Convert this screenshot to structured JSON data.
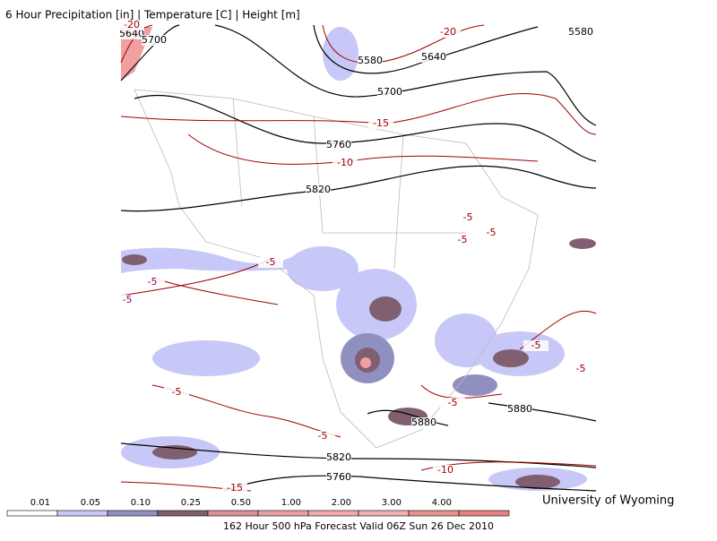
{
  "header": {
    "title": "6 Hour Precipitation [in] | Temperature [C] | Height [m]"
  },
  "contour_labels": [
    "5640",
    "5700",
    "-20",
    "5580",
    "5640",
    "-20",
    "5580",
    "5700",
    "-15",
    "5760",
    "-10",
    "5820",
    "-5",
    "-5",
    "-5",
    "-5",
    "-5",
    "-5",
    "-5",
    "-5",
    "-5",
    "-5",
    "5880",
    "5880",
    "-5",
    "5820",
    "-10",
    "5760",
    "-15"
  ],
  "legend": {
    "labels": [
      "0.01",
      "0.05",
      "0.10",
      "0.25",
      "0.50",
      "1.00",
      "2.00",
      "3.00",
      "4.00"
    ]
  },
  "credit": "University of Wyoming",
  "footer": "162 Hour 500 hPa Forecast Valid 06Z Sun 26 Dec 2010"
}
